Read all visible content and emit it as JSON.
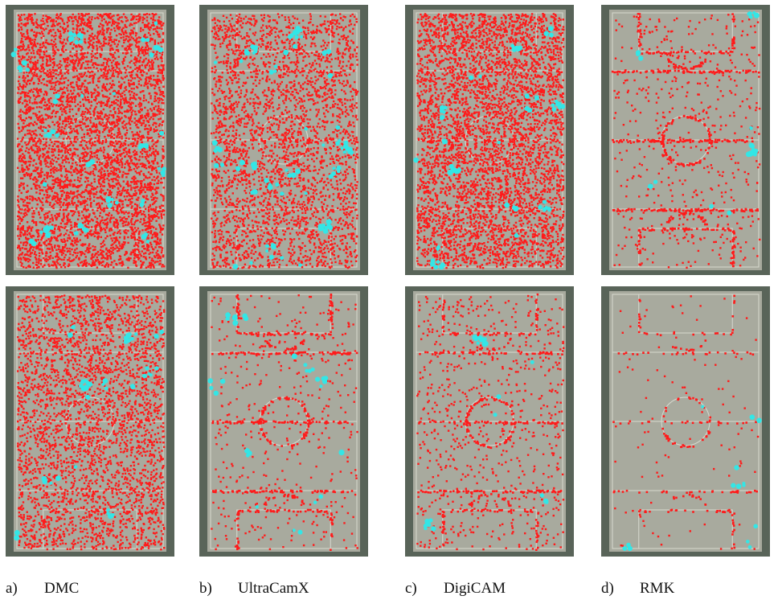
{
  "colors": {
    "matched_point": "#ff1a1a",
    "outlier_point": "#33e6e6",
    "field_surface": "#a8aa9e",
    "field_border": "#596459",
    "field_lines": "#e0e2d8"
  },
  "columns": [
    {
      "letter": "a)",
      "label": "DMC",
      "panels": [
        {
          "row": "top",
          "red_density": 1.0,
          "lines_emphasis": 0.0,
          "cyan_count": 70
        },
        {
          "row": "bottom",
          "red_density": 0.62,
          "lines_emphasis": 0.1,
          "cyan_count": 45
        }
      ]
    },
    {
      "letter": "b)",
      "label": "UltraCamX",
      "panels": [
        {
          "row": "top",
          "red_density": 0.6,
          "lines_emphasis": 0.2,
          "cyan_count": 90
        },
        {
          "row": "bottom",
          "red_density": 0.08,
          "lines_emphasis": 0.85,
          "cyan_count": 30
        }
      ]
    },
    {
      "letter": "c)",
      "label": "DigiCAM",
      "panels": [
        {
          "row": "top",
          "red_density": 0.9,
          "lines_emphasis": 0.1,
          "cyan_count": 55
        },
        {
          "row": "bottom",
          "red_density": 0.14,
          "lines_emphasis": 0.7,
          "cyan_count": 25
        }
      ]
    },
    {
      "letter": "d)",
      "label": "RMK",
      "panels": [
        {
          "row": "top",
          "red_density": 0.1,
          "lines_emphasis": 1.0,
          "cyan_count": 22
        },
        {
          "row": "bottom",
          "red_density": 0.02,
          "lines_emphasis": 0.35,
          "cyan_count": 14
        }
      ]
    }
  ]
}
